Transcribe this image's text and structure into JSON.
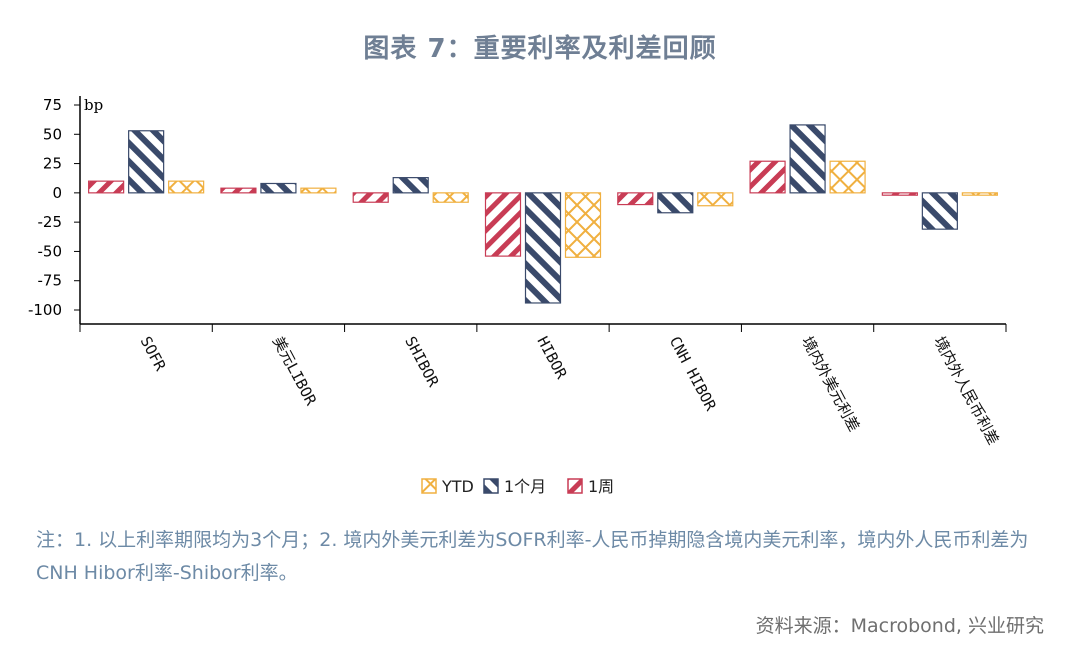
{
  "title": "图表 7：重要利率及利差回顾",
  "note": "注：1. 以上利率期限均为3个月；2. 境内外美元利差为SOFR利率-人民币掉期隐含境内美元利率，境内外人民币利差为CNH Hibor利率-Shibor利率。",
  "source": "资料来源：Macrobond, 兴业研究",
  "chart_data": {
    "type": "bar",
    "unit_label": "bp",
    "categories": [
      "SOFR",
      "美元LIBOR",
      "SHIBOR",
      "HIBOR",
      "CNH HIBOR",
      "境内外美元利差",
      "境内外人民币利差"
    ],
    "series": [
      {
        "name": "1周",
        "color": "#c83c55",
        "pattern": "diagonal-stripes-left",
        "values": [
          10,
          4,
          -8,
          -54,
          -10,
          27,
          -2
        ]
      },
      {
        "name": "1个月",
        "color": "#3a4a6b",
        "pattern": "diagonal-stripes-right",
        "values": [
          53,
          8,
          13,
          -94,
          -17,
          58,
          -31
        ]
      },
      {
        "name": "YTD",
        "color": "#f0b040",
        "pattern": "crosshatch",
        "values": [
          10,
          4,
          -8,
          -55,
          -11,
          27,
          -2
        ]
      }
    ],
    "legend_order": [
      "YTD",
      "1个月",
      "1周"
    ],
    "legend_position": "bottom",
    "ylim": [
      -100,
      75
    ],
    "yticks": [
      75,
      50,
      25,
      0,
      -25,
      -50,
      -75,
      -100
    ],
    "grid": false
  }
}
